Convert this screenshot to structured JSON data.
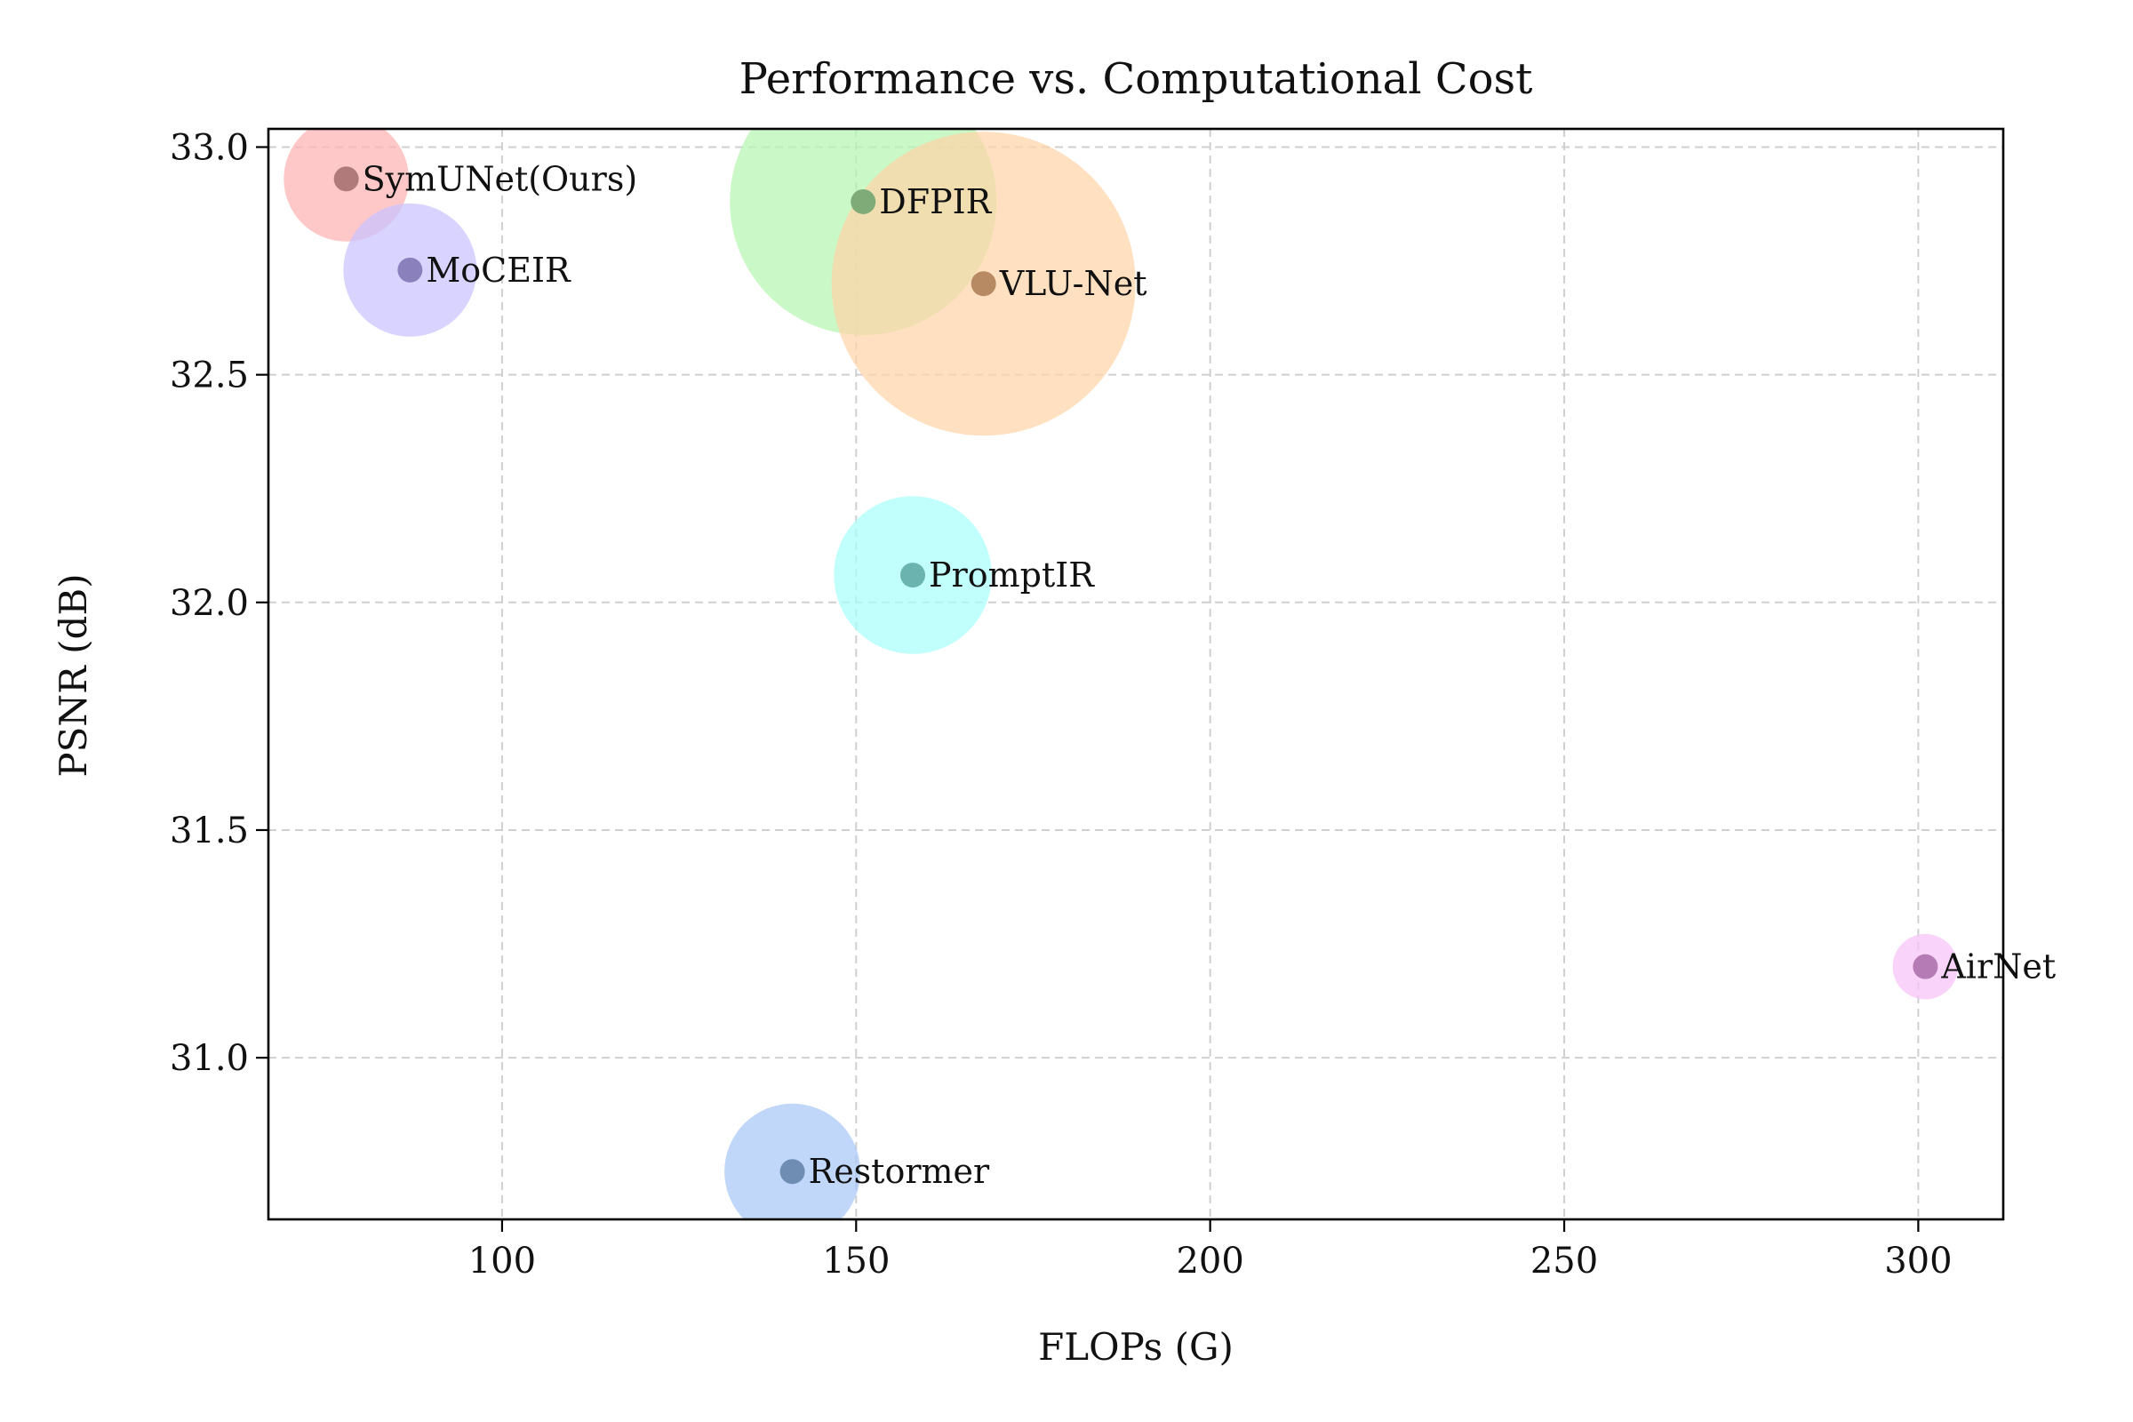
{
  "chart_data": {
    "type": "scatter",
    "title": "Performance vs. Computational Cost",
    "xlabel": "FLOPs (G)",
    "ylabel": "PSNR (dB)",
    "xlim": [
      67,
      312
    ],
    "ylim": [
      30.645,
      33.04
    ],
    "xticks": [
      100,
      150,
      200,
      250,
      300
    ],
    "yticks": [
      31.0,
      31.5,
      32.0,
      32.5,
      33.0
    ],
    "xtick_labels": [
      "100",
      "150",
      "200",
      "250",
      "300"
    ],
    "ytick_labels": [
      "31.0",
      "31.5",
      "32.0",
      "32.5",
      "33.0"
    ],
    "grid": true,
    "size_encoding": "bubble area (relative model size)",
    "points": [
      {
        "name": "SymUNet(Ours)",
        "x": 78,
        "y": 32.93,
        "size": 22,
        "color": "#ffb3b3",
        "dot_color": "#b07a7a"
      },
      {
        "name": "MoCEIR",
        "x": 87,
        "y": 32.73,
        "size": 25,
        "color": "#c9c2ff",
        "dot_color": "#8a80bc"
      },
      {
        "name": "DFPIR",
        "x": 151,
        "y": 32.88,
        "size": 100,
        "color": "#b6f5b0",
        "dot_color": "#7fab78"
      },
      {
        "name": "VLU-Net",
        "x": 168,
        "y": 32.7,
        "size": 130,
        "color": "#ffd4a8",
        "dot_color": "#b88a63"
      },
      {
        "name": "PromptIR",
        "x": 158,
        "y": 32.06,
        "size": 35,
        "color": "#a8fffa",
        "dot_color": "#6bb3ae"
      },
      {
        "name": "AirNet",
        "x": 301,
        "y": 31.2,
        "size": 6,
        "color": "#f7c2f7",
        "dot_color": "#b57bb5"
      },
      {
        "name": "Restormer",
        "x": 141,
        "y": 30.75,
        "size": 26,
        "color": "#a8c8f7",
        "dot_color": "#6f8cb3"
      }
    ]
  }
}
